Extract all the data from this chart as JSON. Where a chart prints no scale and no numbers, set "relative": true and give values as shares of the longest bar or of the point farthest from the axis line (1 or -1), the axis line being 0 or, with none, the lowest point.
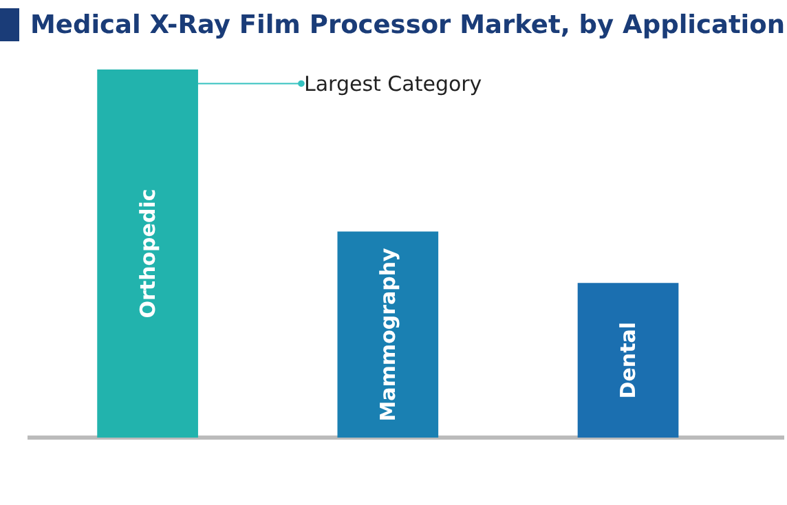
{
  "chart_data": {
    "type": "bar",
    "title": "Medical X-Ray Film Processor Market, by Application",
    "relative": true,
    "tick_labels": false,
    "categories": [
      "Orthopedic",
      "Mammography",
      "Dental"
    ],
    "values": [
      1,
      0.56,
      0.42
    ],
    "colors": [
      "#22b3ad",
      "#1a80b2",
      "#1b6fb0"
    ],
    "annotations": [
      "Largest Category"
    ]
  }
}
